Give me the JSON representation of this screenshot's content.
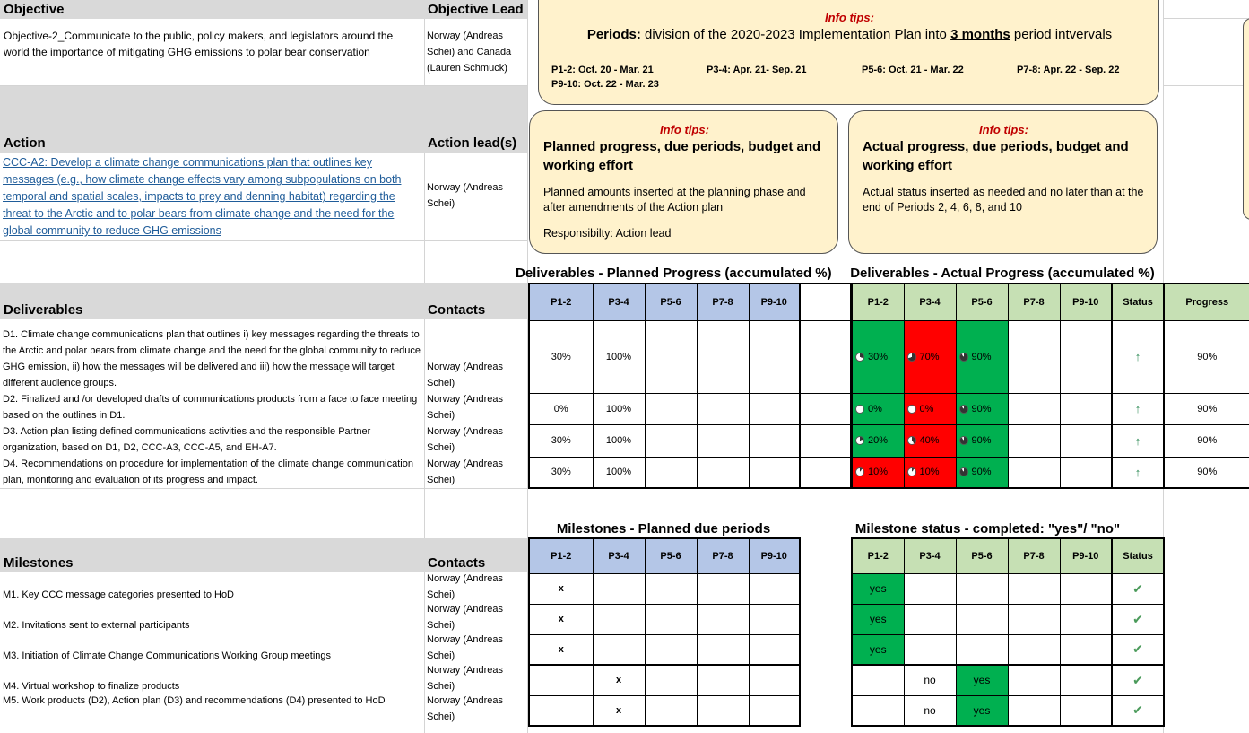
{
  "objective": {
    "header": "Objective",
    "lead_header": "Objective Lead",
    "text": "Objective-2_Communicate to the public, policy makers, and legislators around the world the importance of mitigating GHG emissions to polar bear conservation",
    "lead": "Norway (Andreas Schei) and Canada (Lauren Schmuck)"
  },
  "action": {
    "header": "Action",
    "lead_header": "Action lead(s)",
    "link_text": "CCC-A2: Develop a climate change communications plan that outlines key messages (e.g., how climate change effects vary among subpopulations on both temporal and spatial scales, impacts to prey and denning habitat) regarding the threat to the Arctic and to polar bears from climate change and the need for the global community to reduce GHG emissions",
    "lead": "Norway (Andreas Schei)"
  },
  "info_periods": {
    "tip": "Info tips:",
    "title_bold": "Periods:",
    "title_rest_a": " division of the 2020-2023 Implementation Plan into ",
    "title_emph": "3 months",
    "title_rest_b": " period intvervals",
    "p12": "P1-2: Oct. 20 - Mar. 21",
    "p34": "P3-4: Apr. 21- Sep. 21",
    "p56": "P5-6: Oct. 21 - Mar. 22",
    "p78": "P7-8: Apr. 22 - Sep. 22",
    "p910": "P9-10: Oct. 22 - Mar. 23"
  },
  "info_planned": {
    "tip": "Info tips:",
    "title": "Planned progress, due periods, budget and working effort",
    "body": "Planned amounts inserted at the planning phase and after amendments of the Action plan",
    "resp": "Responsibilty: Action lead"
  },
  "info_actual": {
    "tip": "Info tips:",
    "title": "Actual progress, due periods, budget and working effort",
    "body": "Actual status inserted as needed and no later than at the end of Periods 2, 4, 6, 8, and 10"
  },
  "deliverables": {
    "header": "Deliverables",
    "contacts_header": "Contacts",
    "planned_title": "Deliverables - Planned Progress (accumulated %)",
    "actual_title": "Deliverables - Actual Progress (accumulated %)",
    "periods": [
      "P1-2",
      "P3-4",
      "P5-6",
      "P7-8",
      "P9-10"
    ],
    "status_header": "Status",
    "progress_header": "Progress",
    "rows": [
      {
        "text": "D1. Climate change communications plan that outlines i) key messages regarding the threats to the Arctic and polar bears from climate change and the need for the global community to reduce GHG emission, ii) how the messages will be delivered and iii) how the message will target different audience groups.",
        "contact": "Norway (Andreas Schei)",
        "planned": [
          "30%",
          "100%",
          "",
          "",
          ""
        ],
        "actual": [
          "30%",
          "70%",
          "90%",
          "",
          ""
        ],
        "actual_colors": [
          "g",
          "r",
          "g",
          "",
          ""
        ],
        "status": "↑",
        "progress": "90%"
      },
      {
        "text": "D2. Finalized and /or developed drafts of communications products from a face to face meeting based on the outlines in D1.",
        "contact": "Norway (Andreas Schei)",
        "planned": [
          "0%",
          "100%",
          "",
          "",
          ""
        ],
        "actual": [
          "0%",
          "0%",
          "90%",
          "",
          ""
        ],
        "actual_colors": [
          "g",
          "r",
          "g",
          "",
          ""
        ],
        "status": "↑",
        "progress": "90%"
      },
      {
        "text": "D3. Action plan listing defined communications activities and the responsible Partner organization, based on D1, D2, CCC-A3, CCC-A5, and EH-A7.",
        "contact": "Norway (Andreas Schei)",
        "planned": [
          "30%",
          "100%",
          "",
          "",
          ""
        ],
        "actual": [
          "20%",
          "40%",
          "90%",
          "",
          ""
        ],
        "actual_colors": [
          "g",
          "r",
          "g",
          "",
          ""
        ],
        "status": "↑",
        "progress": "90%"
      },
      {
        "text": "D4. Recommendations on procedure for implementation of the climate change communication plan, monitoring and evaluation of its progress and impact.",
        "contact": "Norway (Andreas Schei)",
        "planned": [
          "30%",
          "100%",
          "",
          "",
          ""
        ],
        "actual": [
          "10%",
          "10%",
          "90%",
          "",
          ""
        ],
        "actual_colors": [
          "r",
          "r",
          "g",
          "",
          ""
        ],
        "status": "↑",
        "progress": "90%"
      }
    ]
  },
  "milestones": {
    "header": "Milestones",
    "contacts_header": "Contacts",
    "planned_title": "Milestones - Planned due periods",
    "status_title": "Milestone status - completed: \"yes\"/ \"no\"",
    "periods": [
      "P1-2",
      "P3-4",
      "P5-6",
      "P7-8",
      "P9-10"
    ],
    "status_header": "Status",
    "rows": [
      {
        "text": "M1. Key CCC message categories presented to HoD",
        "contact": "Norway (Andreas Schei)",
        "planned": [
          "x",
          "",
          "",
          "",
          ""
        ],
        "actual": [
          "yes",
          "",
          "",
          "",
          ""
        ],
        "actual_colors": [
          "g",
          "",
          "",
          "",
          ""
        ],
        "status": "✔"
      },
      {
        "text": "M2. Invitations sent to external participants",
        "contact": "Norway (Andreas Schei)",
        "planned": [
          "x",
          "",
          "",
          "",
          ""
        ],
        "actual": [
          "yes",
          "",
          "",
          "",
          ""
        ],
        "actual_colors": [
          "g",
          "",
          "",
          "",
          ""
        ],
        "status": "✔"
      },
      {
        "text": "M3. Initiation of Climate Change Communications Working Group meetings",
        "contact": "Norway (Andreas Schei)",
        "planned": [
          "x",
          "",
          "",
          "",
          ""
        ],
        "actual": [
          "yes",
          "",
          "",
          "",
          ""
        ],
        "actual_colors": [
          "g",
          "",
          "",
          "",
          ""
        ],
        "status": "✔"
      },
      {
        "text": "M4. Virtual workshop to finalize products",
        "contact": "Norway (Andreas Schei)",
        "planned": [
          "",
          "x",
          "",
          "",
          ""
        ],
        "actual": [
          "",
          "no",
          "yes",
          "",
          ""
        ],
        "actual_colors": [
          "",
          "",
          "g",
          "",
          ""
        ],
        "status": "✔"
      },
      {
        "text": "M5. Work products (D2), Action plan (D3) and recommendations (D4) presented to HoD",
        "contact": "Norway (Andreas Schei)",
        "planned": [
          "",
          "x",
          "",
          "",
          ""
        ],
        "actual": [
          "",
          "no",
          "yes",
          "",
          ""
        ],
        "actual_colors": [
          "",
          "",
          "g",
          "",
          ""
        ],
        "status": "✔"
      }
    ]
  },
  "colors": {
    "green": "#00b050",
    "red": "#ff0000",
    "header_blue": "#b4c6e7",
    "header_green": "#c6e0b4",
    "callout": "#fff2cc",
    "tip_red": "#c00000"
  }
}
